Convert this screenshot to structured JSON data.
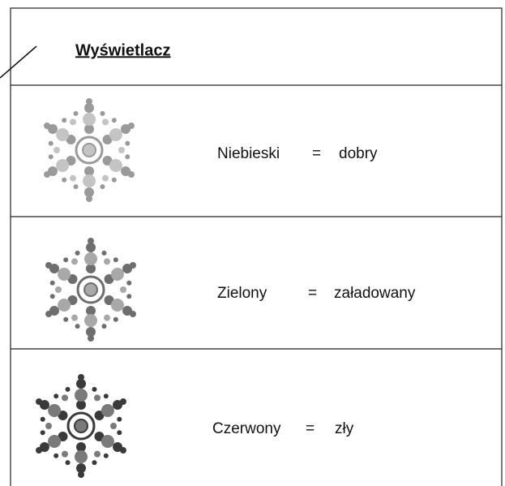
{
  "header": {
    "title": "Wyświetlacz"
  },
  "rows": [
    {
      "label": "Niebieski",
      "equals": "=",
      "meaning": "dobry"
    },
    {
      "label": "Zielony",
      "equals": "=",
      "meaning": "załadowany"
    },
    {
      "label": "Czerwony",
      "equals": "=",
      "meaning": "zły"
    }
  ]
}
